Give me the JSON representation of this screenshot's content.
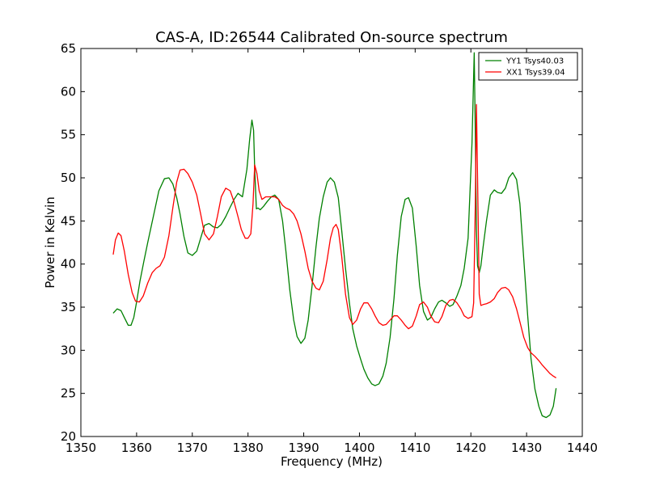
{
  "chart_data": {
    "type": "line",
    "title": "CAS-A, ID:26544 Calibrated On-source spectrum",
    "xlabel": "Frequency (MHz)",
    "ylabel": "Power in Kelvin",
    "xlim": [
      1350,
      1440
    ],
    "ylim": [
      20,
      65
    ],
    "xticks": [
      1350,
      1360,
      1370,
      1380,
      1390,
      1400,
      1410,
      1420,
      1430,
      1440
    ],
    "yticks": [
      20,
      25,
      30,
      35,
      40,
      45,
      50,
      55,
      60,
      65
    ],
    "grid": false,
    "legend": "top-right",
    "series": [
      {
        "name": "YY1 Tsys40.03",
        "color": "#008000",
        "x": [
          1355.8,
          1356.5,
          1357.2,
          1357.8,
          1358.5,
          1359.0,
          1359.5,
          1360.0,
          1360.6,
          1361.3,
          1362.0,
          1363.0,
          1364.0,
          1365.0,
          1365.8,
          1366.5,
          1367.2,
          1367.8,
          1368.5,
          1369.2,
          1370.0,
          1370.8,
          1371.5,
          1372.2,
          1373.0,
          1373.8,
          1374.5,
          1375.2,
          1376.0,
          1376.8,
          1377.5,
          1378.2,
          1379.0,
          1379.8,
          1380.3,
          1380.7,
          1381.0,
          1381.2,
          1381.5,
          1381.8,
          1382.2,
          1382.8,
          1383.5,
          1384.2,
          1384.8,
          1385.5,
          1386.2,
          1386.8,
          1387.5,
          1388.2,
          1388.8,
          1389.5,
          1390.2,
          1390.8,
          1391.5,
          1392.2,
          1392.8,
          1393.5,
          1394.2,
          1394.8,
          1395.5,
          1396.2,
          1396.8,
          1397.5,
          1398.2,
          1398.8,
          1399.5,
          1400.2,
          1400.8,
          1401.5,
          1402.2,
          1402.8,
          1403.5,
          1404.2,
          1404.8,
          1405.5,
          1406.2,
          1406.8,
          1407.5,
          1408.2,
          1408.8,
          1409.5,
          1410.2,
          1410.8,
          1411.5,
          1412.2,
          1412.8,
          1413.5,
          1414.2,
          1414.8,
          1415.5,
          1416.2,
          1416.8,
          1417.5,
          1418.2,
          1418.8,
          1419.5,
          1420.2,
          1420.6,
          1420.8,
          1421.0,
          1421.2,
          1421.5,
          1421.8,
          1422.2,
          1422.8,
          1423.5,
          1424.2,
          1424.8,
          1425.5,
          1426.2,
          1426.8,
          1427.5,
          1428.2,
          1428.8,
          1429.5,
          1430.2,
          1430.8,
          1431.5,
          1432.2,
          1432.8,
          1433.5,
          1434.2,
          1434.8,
          1435.3
        ],
        "y": [
          34.3,
          34.8,
          34.6,
          33.8,
          32.9,
          32.9,
          33.8,
          35.6,
          38.0,
          40.3,
          42.5,
          45.5,
          48.5,
          49.9,
          50.0,
          49.3,
          47.7,
          45.8,
          43.2,
          41.3,
          41.0,
          41.5,
          43.0,
          44.5,
          44.7,
          44.3,
          44.2,
          44.6,
          45.5,
          46.6,
          47.5,
          48.2,
          47.8,
          51.0,
          54.5,
          56.7,
          55.5,
          51.0,
          46.4,
          46.5,
          46.3,
          46.7,
          47.3,
          47.8,
          48.0,
          47.5,
          45.0,
          41.5,
          37.0,
          33.5,
          31.6,
          30.8,
          31.4,
          33.5,
          37.5,
          42.0,
          45.3,
          47.8,
          49.5,
          50.0,
          49.5,
          47.7,
          44.0,
          39.5,
          35.5,
          32.5,
          30.5,
          29.0,
          27.8,
          26.8,
          26.1,
          25.9,
          26.1,
          27.0,
          28.5,
          31.5,
          36.0,
          41.0,
          45.5,
          47.5,
          47.7,
          46.5,
          42.0,
          37.5,
          34.5,
          33.5,
          33.8,
          34.8,
          35.6,
          35.8,
          35.5,
          35.1,
          35.3,
          36.3,
          37.5,
          39.5,
          43.0,
          54.0,
          64.5,
          55.0,
          44.0,
          39.8,
          39.0,
          39.8,
          42.0,
          45.0,
          48.0,
          48.6,
          48.3,
          48.2,
          48.8,
          50.0,
          50.6,
          49.8,
          47.0,
          40.5,
          34.0,
          29.0,
          25.5,
          23.5,
          22.4,
          22.2,
          22.5,
          23.5,
          25.6
        ]
      },
      {
        "name": "XX1 Tsys39.04",
        "color": "#ff0000",
        "x": [
          1355.8,
          1356.2,
          1356.7,
          1357.2,
          1357.8,
          1358.5,
          1359.2,
          1359.8,
          1360.5,
          1361.2,
          1362.0,
          1362.8,
          1363.5,
          1364.2,
          1365.0,
          1365.8,
          1366.5,
          1367.2,
          1367.8,
          1368.5,
          1369.2,
          1370.0,
          1370.8,
          1371.5,
          1372.2,
          1373.0,
          1373.8,
          1374.5,
          1375.2,
          1376.0,
          1376.8,
          1377.5,
          1378.2,
          1378.8,
          1379.5,
          1380.0,
          1380.5,
          1380.9,
          1381.2,
          1381.6,
          1382.0,
          1382.5,
          1383.2,
          1384.0,
          1384.8,
          1385.5,
          1386.2,
          1386.8,
          1387.5,
          1388.2,
          1388.8,
          1389.5,
          1390.2,
          1390.8,
          1391.5,
          1392.2,
          1392.8,
          1393.5,
          1394.2,
          1394.8,
          1395.3,
          1395.8,
          1396.2,
          1396.8,
          1397.5,
          1398.2,
          1398.8,
          1399.5,
          1400.2,
          1400.8,
          1401.5,
          1402.2,
          1402.8,
          1403.5,
          1404.2,
          1404.8,
          1405.5,
          1406.2,
          1406.8,
          1407.5,
          1408.2,
          1408.8,
          1409.5,
          1410.2,
          1410.8,
          1411.5,
          1412.2,
          1412.8,
          1413.5,
          1414.2,
          1414.8,
          1415.5,
          1416.2,
          1416.8,
          1417.5,
          1418.2,
          1418.8,
          1419.5,
          1420.2,
          1420.5,
          1420.8,
          1421.0,
          1421.2,
          1421.5,
          1421.8,
          1422.2,
          1422.8,
          1423.5,
          1424.2,
          1424.8,
          1425.5,
          1426.2,
          1426.8,
          1427.5,
          1428.2,
          1428.8,
          1429.5,
          1430.2,
          1430.8,
          1431.5,
          1432.2,
          1432.8,
          1433.5,
          1434.2,
          1434.8,
          1435.3
        ],
        "y": [
          41.1,
          42.8,
          43.6,
          43.3,
          41.5,
          38.8,
          36.7,
          35.7,
          35.6,
          36.3,
          37.8,
          39.0,
          39.5,
          39.8,
          40.8,
          43.3,
          46.5,
          49.5,
          50.9,
          51.0,
          50.5,
          49.5,
          48.0,
          45.8,
          43.5,
          42.8,
          43.5,
          45.5,
          47.8,
          48.8,
          48.5,
          47.2,
          45.5,
          44.0,
          43.0,
          43.0,
          43.5,
          47.0,
          51.5,
          50.5,
          48.5,
          47.5,
          47.8,
          47.8,
          47.8,
          47.5,
          46.8,
          46.5,
          46.3,
          45.8,
          45.0,
          43.5,
          41.5,
          39.5,
          38.0,
          37.2,
          37.0,
          38.0,
          40.5,
          43.0,
          44.2,
          44.6,
          44.0,
          41.0,
          36.5,
          33.8,
          33.0,
          33.5,
          34.8,
          35.5,
          35.5,
          34.8,
          34.0,
          33.2,
          32.9,
          33.0,
          33.5,
          34.0,
          34.0,
          33.5,
          32.9,
          32.5,
          32.8,
          34.0,
          35.3,
          35.6,
          35.0,
          34.0,
          33.3,
          33.2,
          33.9,
          35.2,
          35.8,
          35.9,
          35.5,
          34.8,
          34.0,
          33.7,
          33.9,
          35.5,
          47.0,
          58.5,
          50.0,
          36.5,
          35.2,
          35.3,
          35.4,
          35.6,
          36.0,
          36.7,
          37.2,
          37.3,
          37.0,
          36.2,
          34.8,
          33.3,
          31.5,
          30.3,
          29.7,
          29.3,
          28.8,
          28.3,
          27.8,
          27.3,
          27.0,
          26.8
        ]
      }
    ]
  }
}
